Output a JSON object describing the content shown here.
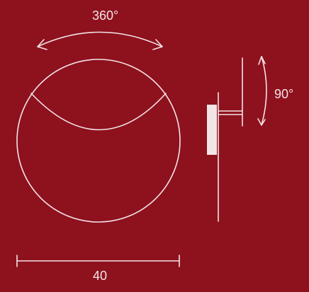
{
  "labels": {
    "rotation": "360°",
    "tilt": "90°",
    "width": "40"
  },
  "colors": {
    "background": "#8e111e",
    "line": "#f3e4e6"
  }
}
